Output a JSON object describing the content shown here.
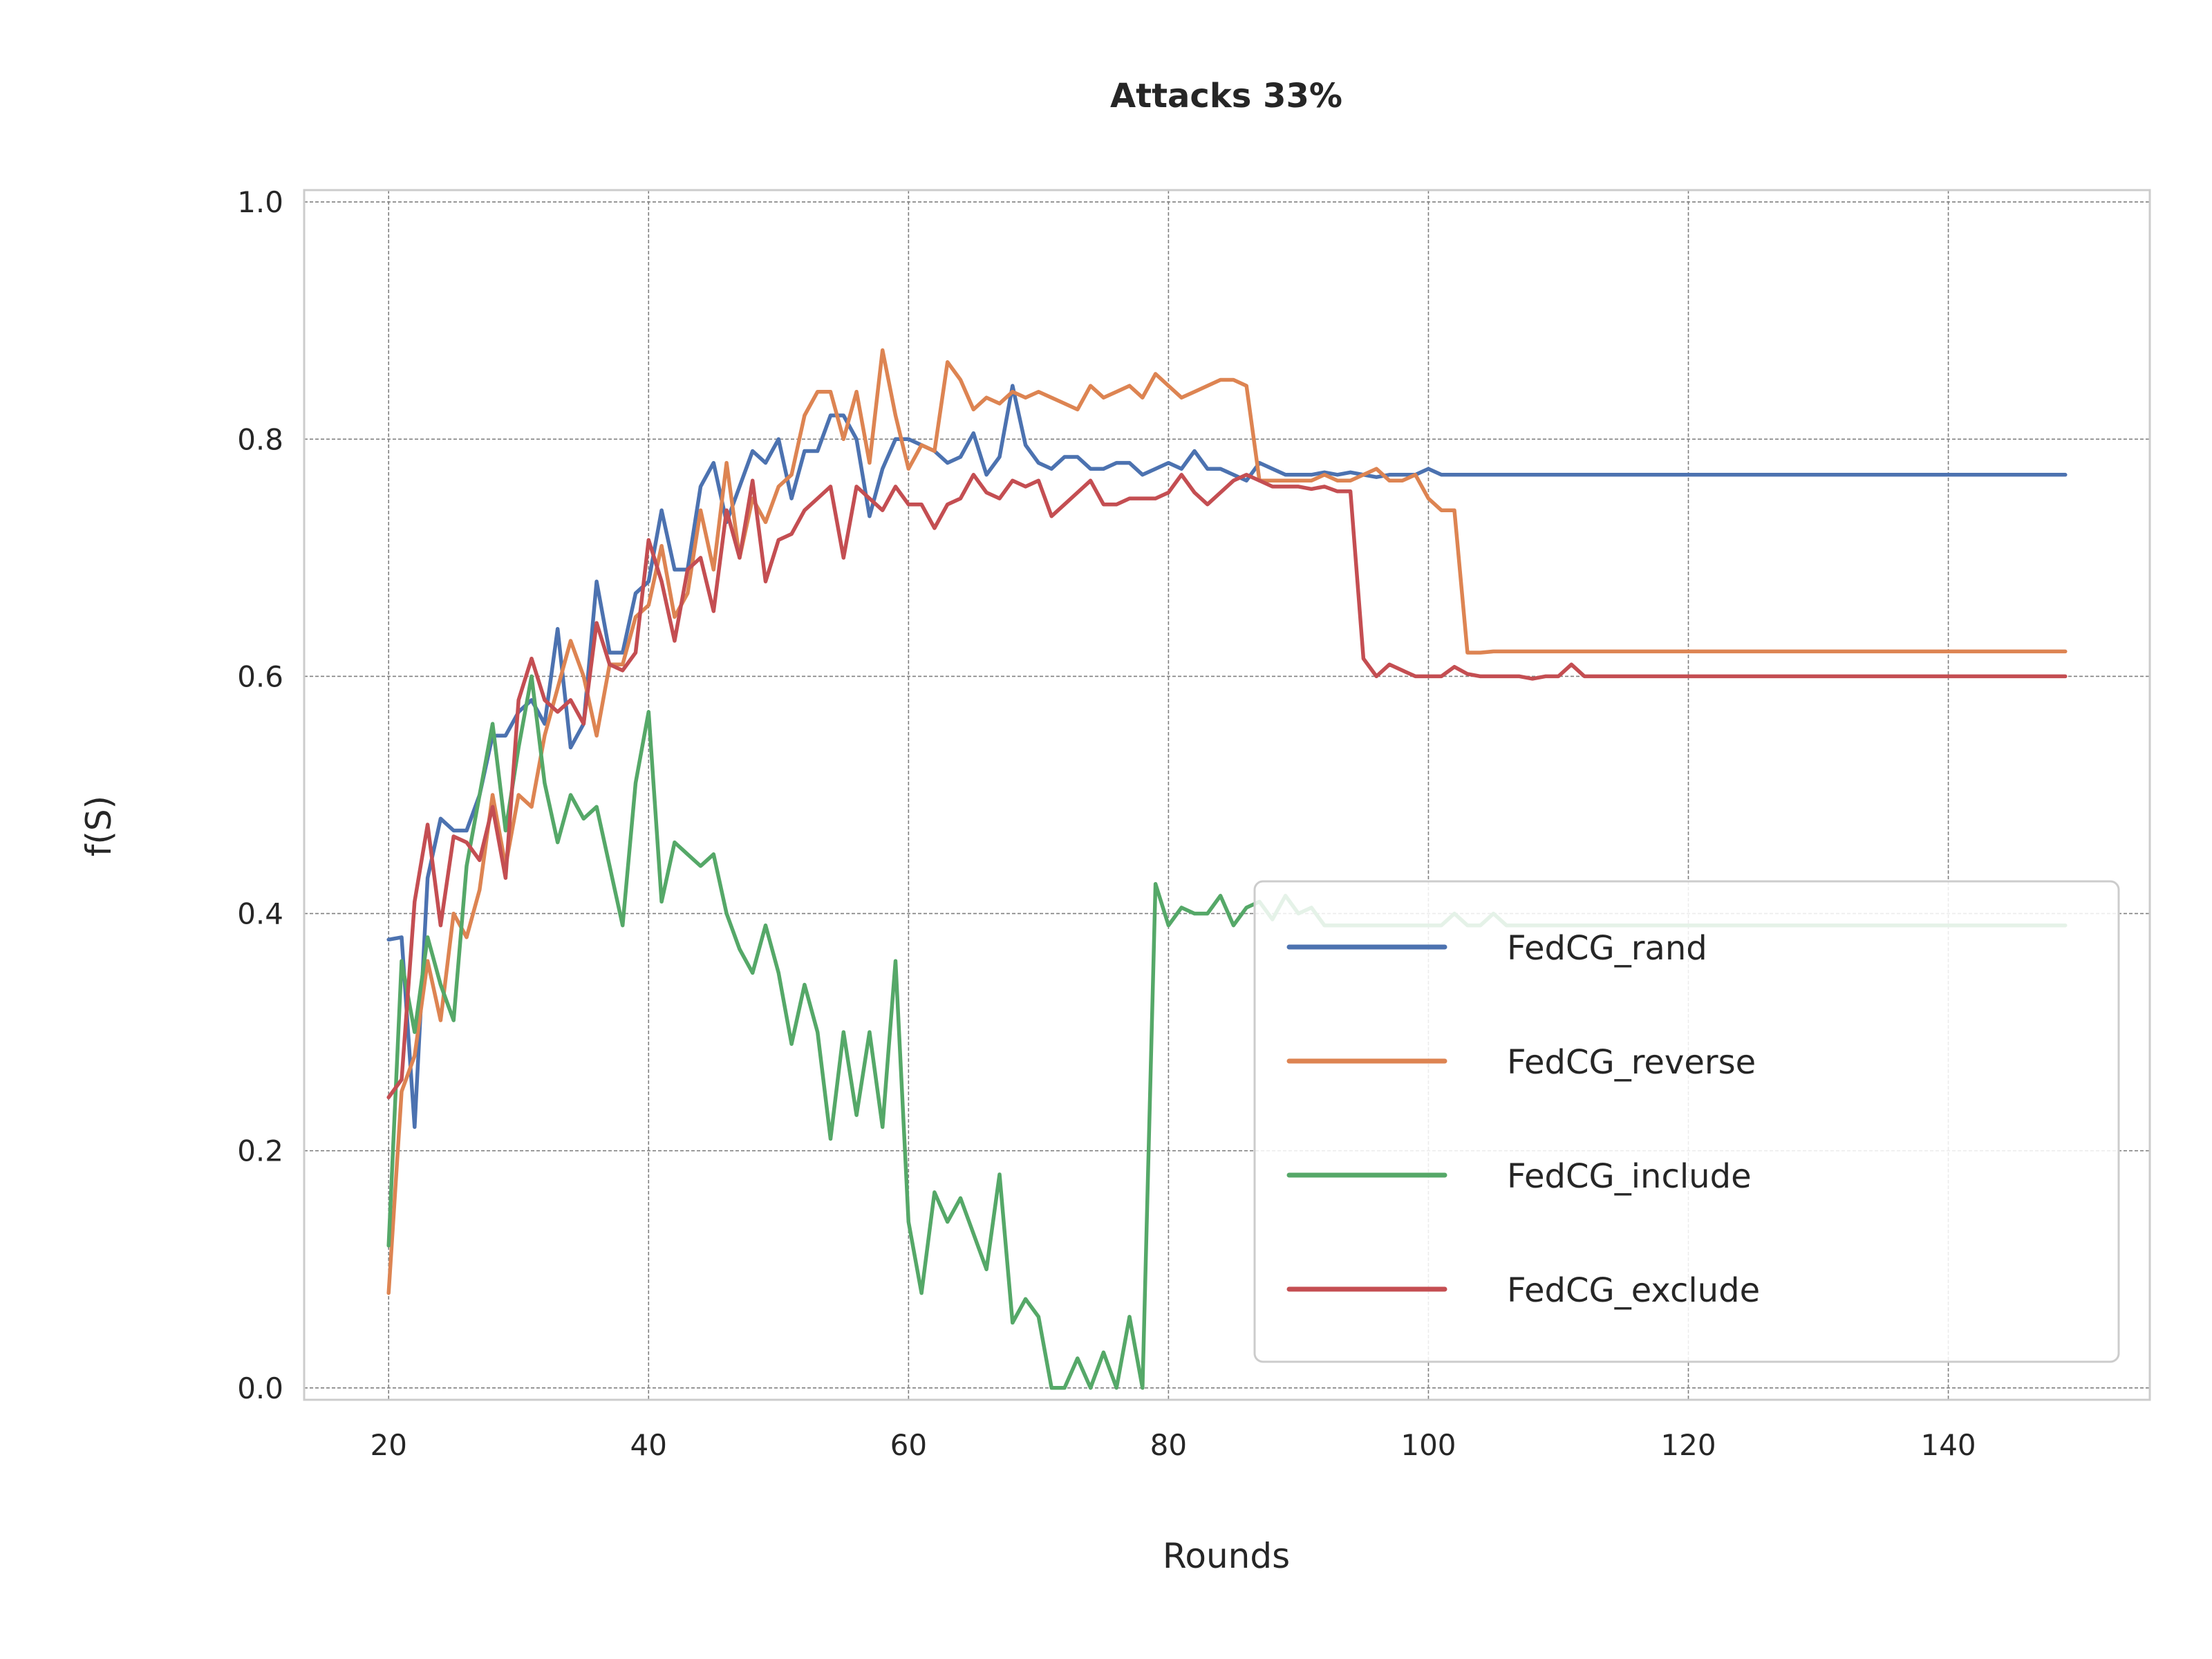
{
  "chart_data": {
    "type": "line",
    "title": "Attacks 33%",
    "xlabel": "Rounds",
    "ylabel": "f(S)",
    "xlim": [
      13.5,
      155.5
    ],
    "ylim": [
      -0.01,
      1.01
    ],
    "xticks": [
      20,
      40,
      60,
      80,
      100,
      120,
      140
    ],
    "yticks": [
      0.0,
      0.2,
      0.4,
      0.6,
      0.8,
      1.0
    ],
    "xtick_labels": [
      "20",
      "40",
      "60",
      "80",
      "100",
      "120",
      "140"
    ],
    "ytick_labels": [
      "0.0",
      "0.2",
      "0.4",
      "0.6",
      "0.8",
      "1.0"
    ],
    "grid": true,
    "legend_position": "lower-right",
    "x_start": 20,
    "series": [
      {
        "name": "FedCG_rand",
        "color": "#4c72b0",
        "values": [
          0.378,
          0.38,
          0.22,
          0.43,
          0.48,
          0.47,
          0.47,
          0.5,
          0.55,
          0.55,
          0.57,
          0.58,
          0.56,
          0.64,
          0.54,
          0.56,
          0.68,
          0.62,
          0.62,
          0.67,
          0.68,
          0.74,
          0.69,
          0.69,
          0.76,
          0.78,
          0.73,
          0.76,
          0.79,
          0.78,
          0.8,
          0.75,
          0.79,
          0.79,
          0.82,
          0.82,
          0.8,
          0.735,
          0.775,
          0.8,
          0.8,
          0.795,
          0.79,
          0.78,
          0.785,
          0.805,
          0.77,
          0.785,
          0.845,
          0.795,
          0.78,
          0.775,
          0.785,
          0.785,
          0.775,
          0.775,
          0.78,
          0.78,
          0.77,
          0.775,
          0.78,
          0.775,
          0.79,
          0.775,
          0.775,
          0.77,
          0.765,
          0.78,
          0.775,
          0.77,
          0.77,
          0.77,
          0.772,
          0.77,
          0.772,
          0.77,
          0.768,
          0.77,
          0.77,
          0.77,
          0.775,
          0.77,
          0.77,
          0.77,
          0.77,
          0.77,
          0.77,
          0.77,
          0.77,
          0.77,
          0.77,
          0.77,
          0.77,
          0.77,
          0.77,
          0.77,
          0.77,
          0.77,
          0.77,
          0.77,
          0.77,
          0.77,
          0.77,
          0.77,
          0.77,
          0.77,
          0.77,
          0.77,
          0.77,
          0.77,
          0.77,
          0.77,
          0.77,
          0.77,
          0.77,
          0.77,
          0.77,
          0.77,
          0.77,
          0.77,
          0.77,
          0.77,
          0.77,
          0.77,
          0.77,
          0.77,
          0.77,
          0.77,
          0.77,
          0.77
        ]
      },
      {
        "name": "FedCG_reverse",
        "color": "#dd8452",
        "values": [
          0.08,
          0.25,
          0.28,
          0.36,
          0.31,
          0.4,
          0.38,
          0.42,
          0.5,
          0.44,
          0.5,
          0.49,
          0.55,
          0.59,
          0.63,
          0.6,
          0.55,
          0.61,
          0.61,
          0.65,
          0.66,
          0.71,
          0.65,
          0.67,
          0.74,
          0.69,
          0.78,
          0.7,
          0.75,
          0.73,
          0.76,
          0.77,
          0.82,
          0.84,
          0.84,
          0.8,
          0.84,
          0.78,
          0.875,
          0.82,
          0.775,
          0.795,
          0.79,
          0.865,
          0.85,
          0.825,
          0.835,
          0.83,
          0.84,
          0.835,
          0.84,
          0.835,
          0.83,
          0.825,
          0.845,
          0.835,
          0.84,
          0.845,
          0.835,
          0.855,
          0.845,
          0.835,
          0.84,
          0.845,
          0.85,
          0.85,
          0.845,
          0.765,
          0.765,
          0.765,
          0.765,
          0.765,
          0.77,
          0.765,
          0.765,
          0.77,
          0.775,
          0.765,
          0.765,
          0.77,
          0.75,
          0.74,
          0.74,
          0.62,
          0.62,
          0.621,
          0.621,
          0.621,
          0.621,
          0.621,
          0.621,
          0.621,
          0.621,
          0.621,
          0.621,
          0.621,
          0.621,
          0.621,
          0.621,
          0.621,
          0.621,
          0.621,
          0.621,
          0.621,
          0.621,
          0.621,
          0.621,
          0.621,
          0.621,
          0.621,
          0.621,
          0.621,
          0.621,
          0.621,
          0.621,
          0.621,
          0.621,
          0.621,
          0.621,
          0.621,
          0.621,
          0.621,
          0.621,
          0.621,
          0.621,
          0.621,
          0.621,
          0.621,
          0.621,
          0.621
        ]
      },
      {
        "name": "FedCG_include",
        "color": "#55a868",
        "values": [
          0.12,
          0.36,
          0.3,
          0.38,
          0.34,
          0.31,
          0.44,
          0.5,
          0.56,
          0.47,
          0.54,
          0.6,
          0.51,
          0.46,
          0.5,
          0.48,
          0.49,
          0.44,
          0.39,
          0.51,
          0.57,
          0.41,
          0.46,
          0.45,
          0.44,
          0.45,
          0.4,
          0.37,
          0.35,
          0.39,
          0.35,
          0.29,
          0.34,
          0.3,
          0.21,
          0.3,
          0.23,
          0.3,
          0.22,
          0.36,
          0.14,
          0.08,
          0.165,
          0.14,
          0.16,
          0.13,
          0.1,
          0.18,
          0.055,
          0.075,
          0.06,
          0.0,
          0.0,
          0.025,
          0.0,
          0.03,
          0.0,
          0.06,
          0.0,
          0.425,
          0.39,
          0.405,
          0.4,
          0.4,
          0.415,
          0.39,
          0.405,
          0.41,
          0.395,
          0.415,
          0.4,
          0.405,
          0.39,
          0.39,
          0.39,
          0.39,
          0.39,
          0.39,
          0.39,
          0.39,
          0.39,
          0.39,
          0.4,
          0.39,
          0.39,
          0.4,
          0.39,
          0.39,
          0.39,
          0.39,
          0.39,
          0.39,
          0.39,
          0.39,
          0.39,
          0.39,
          0.39,
          0.39,
          0.39,
          0.39,
          0.39,
          0.39,
          0.39,
          0.39,
          0.39,
          0.39,
          0.39,
          0.39,
          0.39,
          0.39,
          0.39,
          0.39,
          0.39,
          0.39,
          0.39,
          0.39,
          0.39,
          0.39,
          0.39,
          0.39,
          0.39,
          0.39,
          0.39,
          0.39,
          0.39,
          0.39,
          0.39,
          0.39,
          0.39,
          0.39
        ]
      },
      {
        "name": "FedCG_exclude",
        "color": "#c44e52",
        "values": [
          0.245,
          0.26,
          0.41,
          0.475,
          0.39,
          0.465,
          0.46,
          0.445,
          0.49,
          0.43,
          0.58,
          0.615,
          0.58,
          0.57,
          0.58,
          0.56,
          0.645,
          0.61,
          0.605,
          0.62,
          0.715,
          0.68,
          0.63,
          0.69,
          0.7,
          0.655,
          0.74,
          0.7,
          0.765,
          0.68,
          0.715,
          0.72,
          0.74,
          0.75,
          0.76,
          0.7,
          0.76,
          0.75,
          0.74,
          0.76,
          0.745,
          0.745,
          0.725,
          0.745,
          0.75,
          0.77,
          0.755,
          0.75,
          0.765,
          0.76,
          0.765,
          0.735,
          0.745,
          0.755,
          0.765,
          0.745,
          0.745,
          0.75,
          0.75,
          0.75,
          0.755,
          0.77,
          0.755,
          0.745,
          0.755,
          0.765,
          0.77,
          0.765,
          0.76,
          0.76,
          0.76,
          0.758,
          0.76,
          0.756,
          0.756,
          0.615,
          0.6,
          0.61,
          0.605,
          0.6,
          0.6,
          0.6,
          0.608,
          0.602,
          0.6,
          0.6,
          0.6,
          0.6,
          0.598,
          0.6,
          0.6,
          0.61,
          0.6,
          0.6,
          0.6,
          0.6,
          0.6,
          0.6,
          0.6,
          0.6,
          0.6,
          0.6,
          0.6,
          0.6,
          0.6,
          0.6,
          0.6,
          0.6,
          0.6,
          0.6,
          0.6,
          0.6,
          0.6,
          0.6,
          0.6,
          0.6,
          0.6,
          0.6,
          0.6,
          0.6,
          0.6,
          0.6,
          0.6,
          0.6,
          0.6,
          0.6,
          0.6,
          0.6,
          0.6,
          0.6
        ]
      }
    ]
  }
}
